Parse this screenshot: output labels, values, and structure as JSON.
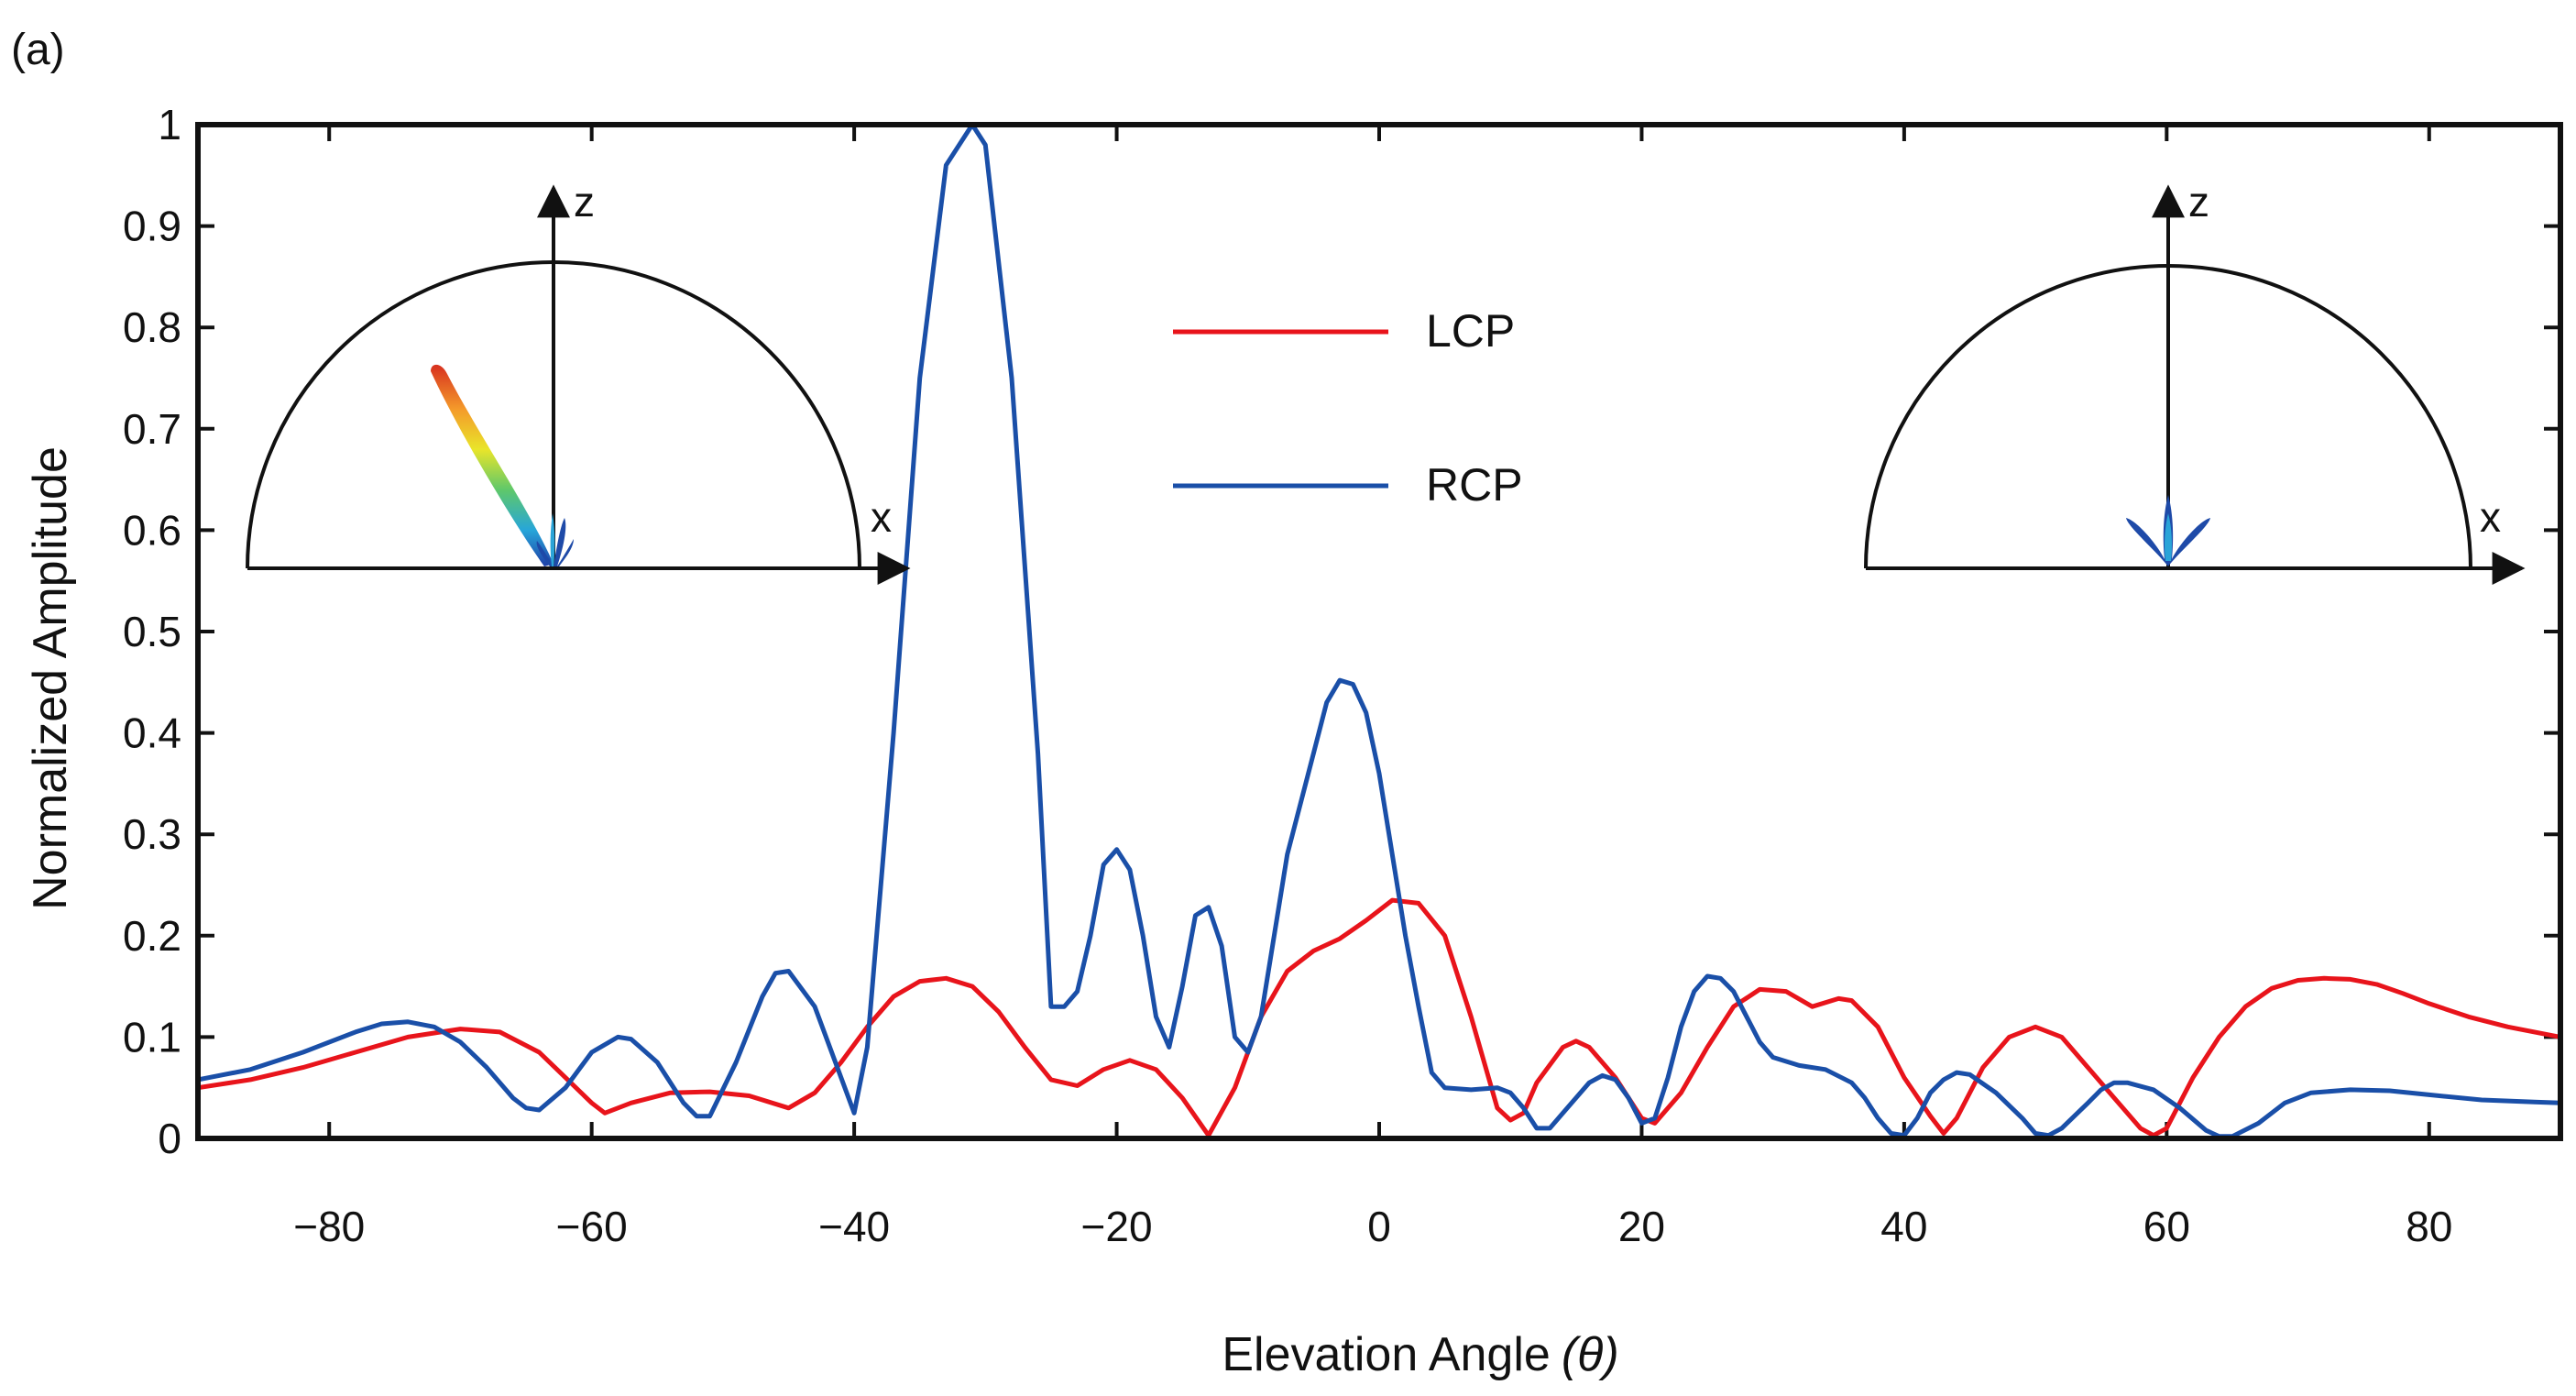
{
  "panel_label": "(a)",
  "chart_data": {
    "type": "line",
    "xlabel": "Elevation Angle",
    "xlabel_symbol": "(θ)",
    "ylabel": "Normalized Amplitude",
    "xlim": [
      -90,
      90
    ],
    "ylim": [
      0,
      1
    ],
    "x_ticks": [
      -80,
      -60,
      -40,
      -20,
      0,
      20,
      40,
      60,
      80
    ],
    "x_tick_labels": [
      "−80",
      "−60",
      "−40",
      "−20",
      "0",
      "20",
      "40",
      "60",
      "80"
    ],
    "y_ticks": [
      0,
      0.1,
      0.2,
      0.3,
      0.4,
      0.5,
      0.6,
      0.7,
      0.8,
      0.9,
      1
    ],
    "y_tick_labels": [
      "0",
      "0.1",
      "0.2",
      "0.3",
      "0.4",
      "0.5",
      "0.6",
      "0.7",
      "0.8",
      "0.9",
      "1"
    ],
    "grid": false,
    "legend_position": "top-center",
    "series": [
      {
        "name": "LCP",
        "color": "#e8141b",
        "points": [
          [
            -90,
            0.05
          ],
          [
            -86,
            0.058
          ],
          [
            -82,
            0.07
          ],
          [
            -78,
            0.085
          ],
          [
            -74,
            0.1
          ],
          [
            -70,
            0.108
          ],
          [
            -67,
            0.105
          ],
          [
            -64,
            0.085
          ],
          [
            -62,
            0.06
          ],
          [
            -60,
            0.035
          ],
          [
            -59,
            0.025
          ],
          [
            -57,
            0.035
          ],
          [
            -54,
            0.045
          ],
          [
            -51,
            0.046
          ],
          [
            -48,
            0.042
          ],
          [
            -45,
            0.03
          ],
          [
            -43,
            0.045
          ],
          [
            -41,
            0.075
          ],
          [
            -39,
            0.11
          ],
          [
            -37,
            0.14
          ],
          [
            -35,
            0.155
          ],
          [
            -33,
            0.158
          ],
          [
            -31,
            0.15
          ],
          [
            -29,
            0.125
          ],
          [
            -27,
            0.09
          ],
          [
            -25,
            0.058
          ],
          [
            -23,
            0.052
          ],
          [
            -21,
            0.068
          ],
          [
            -19,
            0.077
          ],
          [
            -17,
            0.068
          ],
          [
            -15,
            0.04
          ],
          [
            -13,
            0.003
          ],
          [
            -11,
            0.05
          ],
          [
            -9,
            0.12
          ],
          [
            -7,
            0.165
          ],
          [
            -5,
            0.185
          ],
          [
            -3,
            0.197
          ],
          [
            -1,
            0.215
          ],
          [
            1,
            0.235
          ],
          [
            3,
            0.232
          ],
          [
            5,
            0.2
          ],
          [
            7,
            0.12
          ],
          [
            9,
            0.03
          ],
          [
            10,
            0.018
          ],
          [
            11,
            0.025
          ],
          [
            12,
            0.055
          ],
          [
            14,
            0.09
          ],
          [
            15,
            0.096
          ],
          [
            16,
            0.09
          ],
          [
            18,
            0.06
          ],
          [
            20,
            0.02
          ],
          [
            21,
            0.015
          ],
          [
            23,
            0.045
          ],
          [
            25,
            0.09
          ],
          [
            27,
            0.13
          ],
          [
            29,
            0.147
          ],
          [
            31,
            0.145
          ],
          [
            33,
            0.13
          ],
          [
            35,
            0.138
          ],
          [
            36,
            0.136
          ],
          [
            38,
            0.11
          ],
          [
            40,
            0.06
          ],
          [
            42,
            0.022
          ],
          [
            43,
            0.005
          ],
          [
            44,
            0.02
          ],
          [
            46,
            0.07
          ],
          [
            48,
            0.1
          ],
          [
            50,
            0.11
          ],
          [
            52,
            0.1
          ],
          [
            54,
            0.07
          ],
          [
            56,
            0.04
          ],
          [
            58,
            0.01
          ],
          [
            59,
            0.003
          ],
          [
            60,
            0.01
          ],
          [
            62,
            0.06
          ],
          [
            64,
            0.1
          ],
          [
            66,
            0.13
          ],
          [
            68,
            0.148
          ],
          [
            70,
            0.156
          ],
          [
            72,
            0.158
          ],
          [
            74,
            0.157
          ],
          [
            76,
            0.152
          ],
          [
            78,
            0.143
          ],
          [
            80,
            0.133
          ],
          [
            83,
            0.12
          ],
          [
            86,
            0.11
          ],
          [
            90,
            0.1
          ]
        ]
      },
      {
        "name": "RCP",
        "color": "#1a4fa8",
        "points": [
          [
            -90,
            0.058
          ],
          [
            -86,
            0.068
          ],
          [
            -82,
            0.085
          ],
          [
            -78,
            0.105
          ],
          [
            -76,
            0.113
          ],
          [
            -74,
            0.115
          ],
          [
            -72,
            0.11
          ],
          [
            -70,
            0.095
          ],
          [
            -68,
            0.07
          ],
          [
            -66,
            0.04
          ],
          [
            -65,
            0.03
          ],
          [
            -64,
            0.028
          ],
          [
            -62,
            0.05
          ],
          [
            -60,
            0.085
          ],
          [
            -58,
            0.1
          ],
          [
            -57,
            0.098
          ],
          [
            -55,
            0.075
          ],
          [
            -53,
            0.035
          ],
          [
            -52,
            0.022
          ],
          [
            -51,
            0.022
          ],
          [
            -49,
            0.075
          ],
          [
            -47,
            0.14
          ],
          [
            -46,
            0.163
          ],
          [
            -45,
            0.165
          ],
          [
            -43,
            0.13
          ],
          [
            -41,
            0.06
          ],
          [
            -40,
            0.025
          ],
          [
            -39,
            0.09
          ],
          [
            -37,
            0.4
          ],
          [
            -35,
            0.75
          ],
          [
            -33,
            0.96
          ],
          [
            -31,
            1.0
          ],
          [
            -30,
            0.98
          ],
          [
            -28,
            0.75
          ],
          [
            -26,
            0.38
          ],
          [
            -25,
            0.13
          ],
          [
            -24,
            0.13
          ],
          [
            -23,
            0.145
          ],
          [
            -22,
            0.2
          ],
          [
            -21,
            0.27
          ],
          [
            -20,
            0.285
          ],
          [
            -19,
            0.265
          ],
          [
            -18,
            0.2
          ],
          [
            -17,
            0.12
          ],
          [
            -16,
            0.09
          ],
          [
            -15,
            0.15
          ],
          [
            -14,
            0.22
          ],
          [
            -13,
            0.228
          ],
          [
            -12,
            0.19
          ],
          [
            -11,
            0.1
          ],
          [
            -10,
            0.085
          ],
          [
            -9,
            0.12
          ],
          [
            -7,
            0.28
          ],
          [
            -5,
            0.38
          ],
          [
            -4,
            0.43
          ],
          [
            -3,
            0.452
          ],
          [
            -2,
            0.448
          ],
          [
            -1,
            0.42
          ],
          [
            0,
            0.36
          ],
          [
            1,
            0.28
          ],
          [
            2,
            0.2
          ],
          [
            3,
            0.13
          ],
          [
            4,
            0.065
          ],
          [
            5,
            0.05
          ],
          [
            7,
            0.048
          ],
          [
            9,
            0.05
          ],
          [
            10,
            0.045
          ],
          [
            11,
            0.03
          ],
          [
            12,
            0.01
          ],
          [
            13,
            0.01
          ],
          [
            14,
            0.025
          ],
          [
            15,
            0.04
          ],
          [
            16,
            0.055
          ],
          [
            17,
            0.062
          ],
          [
            18,
            0.058
          ],
          [
            19,
            0.04
          ],
          [
            20,
            0.015
          ],
          [
            21,
            0.02
          ],
          [
            22,
            0.06
          ],
          [
            23,
            0.11
          ],
          [
            24,
            0.145
          ],
          [
            25,
            0.16
          ],
          [
            26,
            0.158
          ],
          [
            27,
            0.145
          ],
          [
            28,
            0.12
          ],
          [
            29,
            0.095
          ],
          [
            30,
            0.08
          ],
          [
            32,
            0.072
          ],
          [
            34,
            0.068
          ],
          [
            36,
            0.055
          ],
          [
            37,
            0.04
          ],
          [
            38,
            0.02
          ],
          [
            39,
            0.005
          ],
          [
            40,
            0.003
          ],
          [
            41,
            0.02
          ],
          [
            42,
            0.045
          ],
          [
            43,
            0.058
          ],
          [
            44,
            0.065
          ],
          [
            45,
            0.063
          ],
          [
            47,
            0.045
          ],
          [
            49,
            0.02
          ],
          [
            50,
            0.005
          ],
          [
            51,
            0.003
          ],
          [
            52,
            0.01
          ],
          [
            54,
            0.035
          ],
          [
            55,
            0.048
          ],
          [
            56,
            0.055
          ],
          [
            57,
            0.055
          ],
          [
            59,
            0.048
          ],
          [
            61,
            0.03
          ],
          [
            63,
            0.008
          ],
          [
            64,
            0.002
          ],
          [
            65,
            0.002
          ],
          [
            67,
            0.015
          ],
          [
            69,
            0.035
          ],
          [
            71,
            0.045
          ],
          [
            74,
            0.048
          ],
          [
            77,
            0.047
          ],
          [
            80,
            0.043
          ],
          [
            84,
            0.038
          ],
          [
            88,
            0.036
          ],
          [
            90,
            0.035
          ]
        ]
      }
    ]
  },
  "insets": [
    {
      "x_axis_label": "x",
      "z_axis_label": "z",
      "beam": "tilted-left"
    },
    {
      "x_axis_label": "x",
      "z_axis_label": "z",
      "beam": "broadside"
    }
  ]
}
